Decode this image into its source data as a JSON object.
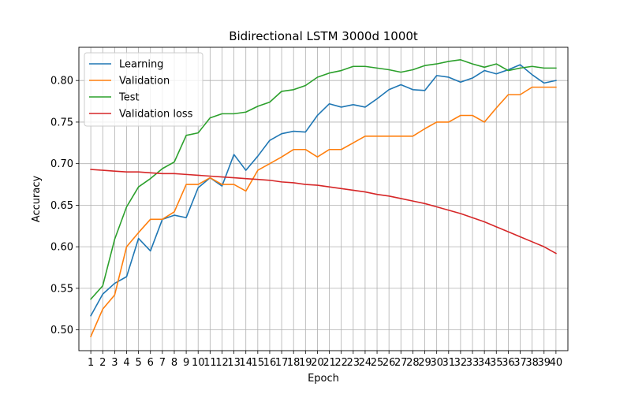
{
  "chart_data": {
    "type": "line",
    "title": "Bidirectional LSTM 3000d 1000t",
    "xlabel": "Epoch",
    "ylabel": "Accuracy",
    "x": [
      1,
      2,
      3,
      4,
      5,
      6,
      7,
      8,
      9,
      10,
      11,
      12,
      13,
      14,
      15,
      16,
      17,
      18,
      19,
      20,
      21,
      22,
      23,
      24,
      25,
      26,
      27,
      28,
      29,
      30,
      31,
      32,
      33,
      34,
      35,
      36,
      37,
      38,
      39,
      40
    ],
    "x_tick_labels": [
      "1",
      "2",
      "3",
      "4",
      "5",
      "6",
      "7",
      "8",
      "9",
      "10",
      "11",
      "12",
      "13",
      "14",
      "15",
      "16",
      "17",
      "18",
      "19",
      "20",
      "21",
      "22",
      "23",
      "24",
      "25",
      "26",
      "27",
      "28",
      "29",
      "30",
      "31",
      "32",
      "33",
      "34",
      "35",
      "36",
      "37",
      "38",
      "39",
      "40"
    ],
    "xlim": [
      0,
      41
    ],
    "ylim": [
      0.475,
      0.84
    ],
    "y_ticks": [
      0.5,
      0.55,
      0.6,
      0.65,
      0.7,
      0.75,
      0.8
    ],
    "y_tick_labels": [
      "0.50",
      "0.55",
      "0.60",
      "0.65",
      "0.70",
      "0.75",
      "0.80"
    ],
    "grid": true,
    "legend_position": "top-left",
    "series": [
      {
        "name": "Learning",
        "color": "#1f77b4",
        "values": [
          0.517,
          0.543,
          0.556,
          0.564,
          0.61,
          0.595,
          0.633,
          0.638,
          0.635,
          0.671,
          0.683,
          0.673,
          0.711,
          0.692,
          0.709,
          0.728,
          0.736,
          0.739,
          0.738,
          0.758,
          0.772,
          0.768,
          0.771,
          0.768,
          0.778,
          0.789,
          0.795,
          0.789,
          0.788,
          0.806,
          0.804,
          0.798,
          0.803,
          0.812,
          0.808,
          0.813,
          0.819,
          0.807,
          0.797,
          0.8
        ]
      },
      {
        "name": "Validation",
        "color": "#ff7f0e",
        "values": [
          0.492,
          0.525,
          0.542,
          0.6,
          0.617,
          0.633,
          0.633,
          0.642,
          0.675,
          0.675,
          0.683,
          0.675,
          0.675,
          0.667,
          0.692,
          0.7,
          0.708,
          0.717,
          0.717,
          0.708,
          0.717,
          0.717,
          0.725,
          0.733,
          0.733,
          0.733,
          0.733,
          0.733,
          0.742,
          0.75,
          0.75,
          0.758,
          0.758,
          0.75,
          0.767,
          0.783,
          0.783,
          0.792,
          0.792,
          0.792
        ]
      },
      {
        "name": "Test",
        "color": "#2ca02c",
        "values": [
          0.537,
          0.553,
          0.609,
          0.648,
          0.672,
          0.682,
          0.694,
          0.702,
          0.734,
          0.737,
          0.755,
          0.76,
          0.76,
          0.762,
          0.769,
          0.774,
          0.787,
          0.789,
          0.794,
          0.804,
          0.809,
          0.812,
          0.817,
          0.817,
          0.815,
          0.813,
          0.81,
          0.813,
          0.818,
          0.82,
          0.823,
          0.825,
          0.82,
          0.816,
          0.82,
          0.812,
          0.815,
          0.817,
          0.815,
          0.815
        ]
      },
      {
        "name": "Validation loss",
        "color": "#d62728",
        "values": [
          0.693,
          0.692,
          0.691,
          0.69,
          0.69,
          0.689,
          0.688,
          0.688,
          0.687,
          0.686,
          0.685,
          0.684,
          0.683,
          0.682,
          0.681,
          0.68,
          0.678,
          0.677,
          0.675,
          0.674,
          0.672,
          0.67,
          0.668,
          0.666,
          0.663,
          0.661,
          0.658,
          0.655,
          0.652,
          0.648,
          0.644,
          0.64,
          0.635,
          0.63,
          0.624,
          0.618,
          0.612,
          0.606,
          0.6,
          0.592
        ]
      }
    ]
  }
}
